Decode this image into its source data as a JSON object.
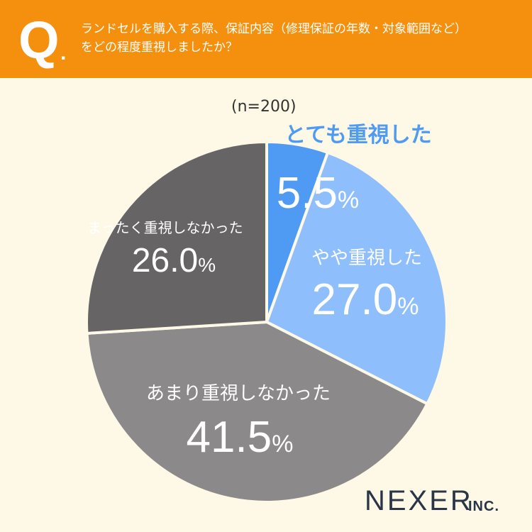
{
  "header": {
    "q_mark": "Q",
    "q_dot": ".",
    "question_line1": "ランドセルを購入する際、保証内容（修理保証の年数・対象範囲など）",
    "question_line2": "をどの程度重視しましたか？"
  },
  "sample": "(n=200)",
  "brand": {
    "name": "NEXER",
    "suffix": "INC."
  },
  "colors": {
    "header": "#f5900e",
    "background": "#fdf9e6",
    "very_important": "#4f9bf3",
    "somewhat_important": "#8ebefc",
    "not_very_important": "#8b898a",
    "not_at_all": "#666465"
  },
  "chart_data": {
    "type": "pie",
    "start": "12 o'clock, clockwise",
    "slices": [
      {
        "label": "とても重視した",
        "value": 5.5,
        "value_text": "5.5",
        "unit": "%",
        "color": "#4f9bf3"
      },
      {
        "label": "やや重視した",
        "value": 27.0,
        "value_text": "27.0",
        "unit": "%",
        "color": "#8ebefc"
      },
      {
        "label": "あまり重視しなかった",
        "value": 41.5,
        "value_text": "41.5",
        "unit": "%",
        "color": "#8b898a"
      },
      {
        "label": "まったく重視しなかった",
        "value": 26.0,
        "value_text": "26.0",
        "unit": "%",
        "color": "#666465"
      }
    ]
  }
}
